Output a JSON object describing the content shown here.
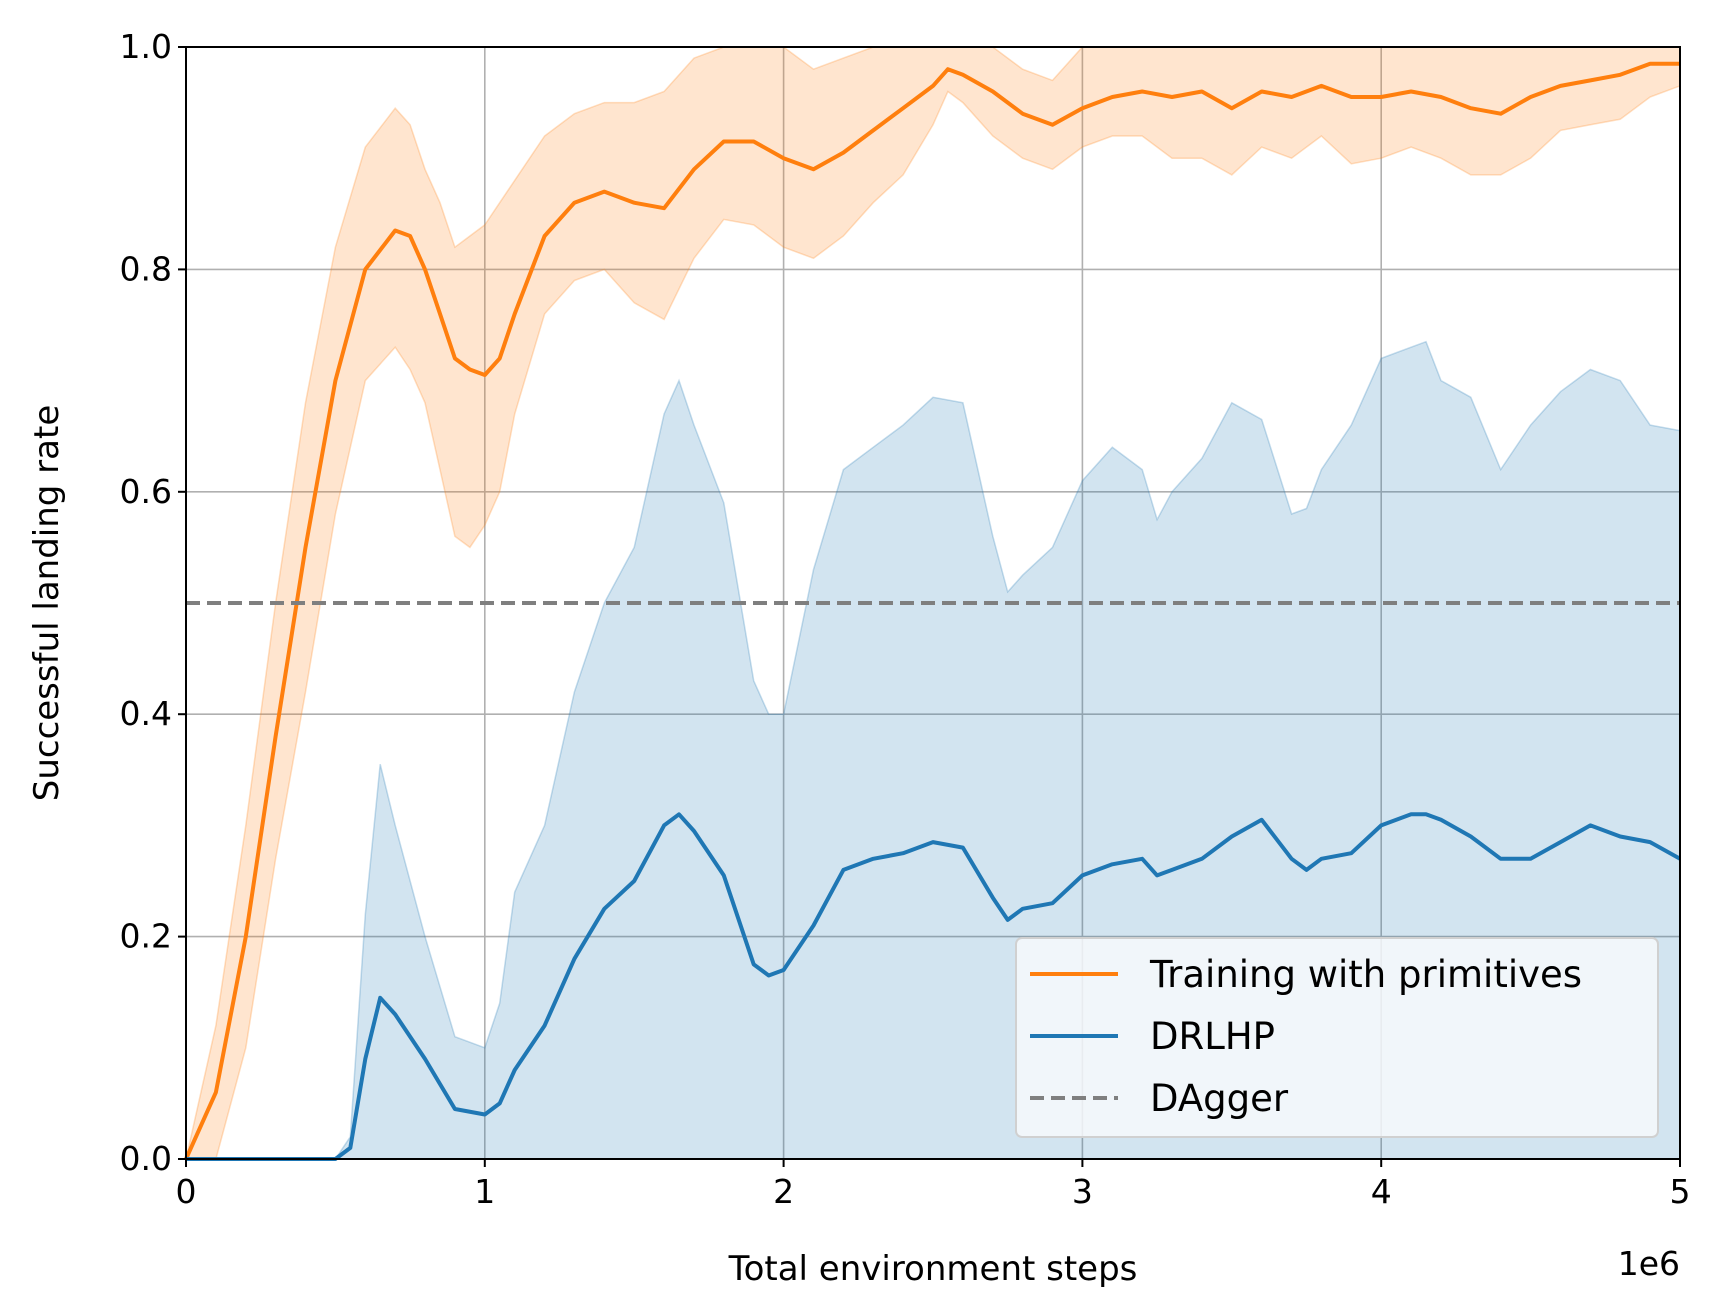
{
  "chart_data": {
    "type": "line",
    "xlabel": "Total environment steps",
    "ylabel": "Successful landing rate",
    "x_offset_label": "1e6",
    "xlim": [
      0,
      5
    ],
    "ylim": [
      0,
      1
    ],
    "x_ticks": [
      "0",
      "1",
      "2",
      "3",
      "4",
      "5"
    ],
    "y_ticks": [
      "0.0",
      "0.2",
      "0.4",
      "0.6",
      "0.8",
      "1.0"
    ],
    "x_tick_values": [
      0,
      1,
      2,
      3,
      4,
      5
    ],
    "y_tick_values": [
      0,
      0.2,
      0.4,
      0.6,
      0.8,
      1.0
    ],
    "grid": true,
    "legend_position": "lower-right",
    "colors": {
      "orange": "#ff7f0e",
      "blue": "#1f77b4",
      "gray": "#7f7f7f"
    },
    "series": [
      {
        "name": "Training with primitives",
        "color": "#ff7f0e",
        "x": [
          0.0,
          0.1,
          0.2,
          0.3,
          0.4,
          0.5,
          0.6,
          0.7,
          0.75,
          0.8,
          0.85,
          0.9,
          0.95,
          1.0,
          1.05,
          1.1,
          1.2,
          1.3,
          1.4,
          1.5,
          1.6,
          1.7,
          1.8,
          1.9,
          2.0,
          2.1,
          2.2,
          2.3,
          2.4,
          2.5,
          2.55,
          2.6,
          2.7,
          2.8,
          2.9,
          3.0,
          3.1,
          3.2,
          3.3,
          3.4,
          3.5,
          3.6,
          3.7,
          3.8,
          3.9,
          4.0,
          4.1,
          4.2,
          4.3,
          4.4,
          4.5,
          4.6,
          4.7,
          4.8,
          4.9,
          5.0
        ],
        "mean": [
          0.0,
          0.06,
          0.2,
          0.38,
          0.55,
          0.7,
          0.8,
          0.835,
          0.83,
          0.8,
          0.76,
          0.72,
          0.71,
          0.705,
          0.72,
          0.76,
          0.83,
          0.86,
          0.87,
          0.86,
          0.855,
          0.89,
          0.915,
          0.915,
          0.9,
          0.89,
          0.905,
          0.925,
          0.945,
          0.965,
          0.98,
          0.975,
          0.96,
          0.94,
          0.93,
          0.945,
          0.955,
          0.96,
          0.955,
          0.96,
          0.945,
          0.96,
          0.955,
          0.965,
          0.955,
          0.955,
          0.96,
          0.955,
          0.945,
          0.94,
          0.955,
          0.965,
          0.97,
          0.975,
          0.985,
          0.985
        ],
        "upper": [
          0.0,
          0.12,
          0.3,
          0.5,
          0.68,
          0.82,
          0.91,
          0.945,
          0.93,
          0.89,
          0.86,
          0.82,
          0.83,
          0.84,
          0.86,
          0.88,
          0.92,
          0.94,
          0.95,
          0.95,
          0.96,
          0.99,
          1.0,
          1.0,
          1.0,
          0.98,
          0.99,
          1.0,
          1.0,
          1.0,
          1.0,
          1.0,
          1.0,
          0.98,
          0.97,
          1.0,
          1.0,
          1.0,
          1.0,
          1.0,
          1.0,
          1.0,
          1.0,
          1.0,
          1.0,
          1.0,
          1.0,
          1.0,
          1.0,
          1.0,
          1.0,
          1.0,
          1.0,
          1.0,
          1.0,
          1.0
        ],
        "lower": [
          0.0,
          0.0,
          0.1,
          0.27,
          0.42,
          0.58,
          0.7,
          0.73,
          0.71,
          0.68,
          0.62,
          0.56,
          0.55,
          0.57,
          0.6,
          0.67,
          0.76,
          0.79,
          0.8,
          0.77,
          0.755,
          0.81,
          0.845,
          0.84,
          0.82,
          0.81,
          0.83,
          0.86,
          0.885,
          0.93,
          0.96,
          0.95,
          0.92,
          0.9,
          0.89,
          0.91,
          0.92,
          0.92,
          0.9,
          0.9,
          0.885,
          0.91,
          0.9,
          0.92,
          0.895,
          0.9,
          0.91,
          0.9,
          0.885,
          0.885,
          0.9,
          0.925,
          0.93,
          0.935,
          0.955,
          0.965
        ]
      },
      {
        "name": "DRLHP",
        "color": "#1f77b4",
        "x": [
          0.0,
          0.3,
          0.5,
          0.55,
          0.6,
          0.65,
          0.7,
          0.8,
          0.9,
          1.0,
          1.05,
          1.1,
          1.2,
          1.3,
          1.4,
          1.5,
          1.6,
          1.65,
          1.7,
          1.8,
          1.9,
          1.95,
          2.0,
          2.1,
          2.2,
          2.3,
          2.4,
          2.5,
          2.6,
          2.7,
          2.75,
          2.8,
          2.9,
          3.0,
          3.1,
          3.2,
          3.25,
          3.3,
          3.4,
          3.5,
          3.6,
          3.7,
          3.75,
          3.8,
          3.9,
          4.0,
          4.1,
          4.15,
          4.2,
          4.3,
          4.4,
          4.5,
          4.6,
          4.7,
          4.8,
          4.9,
          5.0
        ],
        "mean": [
          0.0,
          0.0,
          0.0,
          0.01,
          0.09,
          0.145,
          0.13,
          0.09,
          0.045,
          0.04,
          0.05,
          0.08,
          0.12,
          0.18,
          0.225,
          0.25,
          0.3,
          0.31,
          0.295,
          0.255,
          0.175,
          0.165,
          0.17,
          0.21,
          0.26,
          0.27,
          0.275,
          0.285,
          0.28,
          0.235,
          0.215,
          0.225,
          0.23,
          0.255,
          0.265,
          0.27,
          0.255,
          0.26,
          0.27,
          0.29,
          0.305,
          0.27,
          0.26,
          0.27,
          0.275,
          0.3,
          0.31,
          0.31,
          0.305,
          0.29,
          0.27,
          0.27,
          0.285,
          0.3,
          0.29,
          0.285,
          0.27
        ],
        "upper": [
          0.0,
          0.0,
          0.0,
          0.02,
          0.22,
          0.355,
          0.3,
          0.2,
          0.11,
          0.1,
          0.14,
          0.24,
          0.3,
          0.42,
          0.5,
          0.55,
          0.67,
          0.7,
          0.66,
          0.59,
          0.43,
          0.4,
          0.4,
          0.53,
          0.62,
          0.64,
          0.66,
          0.685,
          0.68,
          0.56,
          0.51,
          0.525,
          0.55,
          0.61,
          0.64,
          0.62,
          0.575,
          0.6,
          0.63,
          0.68,
          0.665,
          0.58,
          0.585,
          0.62,
          0.66,
          0.72,
          0.73,
          0.735,
          0.7,
          0.685,
          0.62,
          0.66,
          0.69,
          0.71,
          0.7,
          0.66,
          0.655
        ],
        "lower": [
          0.0,
          0.0,
          0.0,
          0.0,
          0.0,
          0.0,
          0.0,
          0.0,
          0.0,
          0.0,
          0.0,
          0.0,
          0.0,
          0.0,
          0.0,
          0.0,
          0.0,
          0.0,
          0.0,
          0.0,
          0.0,
          0.0,
          0.0,
          0.0,
          0.0,
          0.0,
          0.0,
          0.0,
          0.0,
          0.0,
          0.0,
          0.0,
          0.0,
          0.0,
          0.0,
          0.0,
          0.0,
          0.0,
          0.0,
          0.0,
          0.0,
          0.0,
          0.0,
          0.0,
          0.0,
          0.0,
          0.0,
          0.0,
          0.0,
          0.0,
          0.0,
          0.0,
          0.0,
          0.0,
          0.0,
          0.0,
          0.0
        ]
      },
      {
        "name": "DAgger",
        "color": "#7f7f7f",
        "style": "dashed",
        "x": [
          0.0,
          5.0
        ],
        "mean": [
          0.5,
          0.5
        ]
      }
    ]
  }
}
